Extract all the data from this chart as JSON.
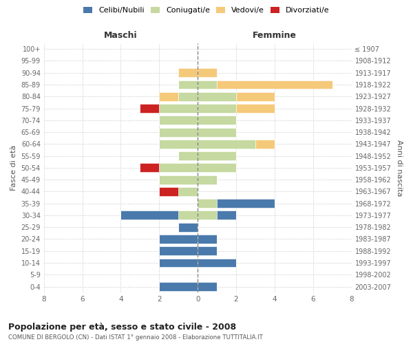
{
  "age_groups": [
    "100+",
    "95-99",
    "90-94",
    "85-89",
    "80-84",
    "75-79",
    "70-74",
    "65-69",
    "60-64",
    "55-59",
    "50-54",
    "45-49",
    "40-44",
    "35-39",
    "30-34",
    "25-29",
    "20-24",
    "15-19",
    "10-14",
    "5-9",
    "0-4"
  ],
  "birth_years": [
    "≤ 1907",
    "1908-1912",
    "1913-1917",
    "1918-1922",
    "1923-1927",
    "1928-1932",
    "1933-1937",
    "1938-1942",
    "1943-1947",
    "1948-1952",
    "1953-1957",
    "1958-1962",
    "1963-1967",
    "1968-1972",
    "1973-1977",
    "1978-1982",
    "1983-1987",
    "1988-1992",
    "1993-1997",
    "1998-2002",
    "2003-2007"
  ],
  "colors": {
    "celibi": "#4a7aac",
    "coniugati": "#c5d9a0",
    "vedovi": "#f5c97a",
    "divorziati": "#cc2222"
  },
  "maschi": {
    "celibi": [
      0,
      0,
      0,
      0,
      0,
      0,
      0,
      0,
      0,
      0,
      0,
      0,
      0,
      0,
      3,
      1,
      2,
      2,
      2,
      0,
      2
    ],
    "coniugati": [
      0,
      0,
      0,
      1,
      1,
      2,
      2,
      2,
      2,
      1,
      2,
      2,
      1,
      0,
      1,
      0,
      0,
      0,
      0,
      0,
      0
    ],
    "vedovi": [
      0,
      0,
      1,
      0,
      1,
      0,
      0,
      0,
      0,
      0,
      0,
      0,
      0,
      0,
      0,
      0,
      0,
      0,
      0,
      0,
      0
    ],
    "divorziati": [
      0,
      0,
      0,
      0,
      0,
      1,
      0,
      0,
      0,
      0,
      1,
      0,
      1,
      0,
      0,
      0,
      0,
      0,
      0,
      0,
      0
    ]
  },
  "femmine": {
    "celibi": [
      0,
      0,
      0,
      0,
      0,
      0,
      0,
      0,
      0,
      0,
      0,
      0,
      0,
      3,
      1,
      0,
      1,
      1,
      2,
      0,
      1
    ],
    "coniugati": [
      0,
      0,
      0,
      1,
      2,
      2,
      2,
      2,
      3,
      2,
      2,
      1,
      0,
      1,
      1,
      0,
      0,
      0,
      0,
      0,
      0
    ],
    "vedovi": [
      0,
      0,
      1,
      6,
      2,
      2,
      0,
      0,
      1,
      0,
      0,
      0,
      0,
      0,
      0,
      0,
      0,
      0,
      0,
      0,
      0
    ],
    "divorziati": [
      0,
      0,
      0,
      0,
      0,
      0,
      0,
      0,
      0,
      0,
      0,
      0,
      0,
      0,
      0,
      0,
      0,
      0,
      0,
      0,
      0
    ]
  },
  "xlim": 8,
  "title": "Popolazione per età, sesso e stato civile - 2008",
  "subtitle": "COMUNE DI BERGOLO (CN) - Dati ISTAT 1° gennaio 2008 - Elaborazione TUTTITALIA.IT",
  "ylabel_left": "Fasce di età",
  "ylabel_right": "Anni di nascita",
  "xlabel_left": "Maschi",
  "xlabel_right": "Femmine",
  "legend_labels": [
    "Celibi/Nubili",
    "Coniugati/e",
    "Vedovi/e",
    "Divorziati/e"
  ],
  "background_color": "#ffffff",
  "grid_color": "#cccccc"
}
